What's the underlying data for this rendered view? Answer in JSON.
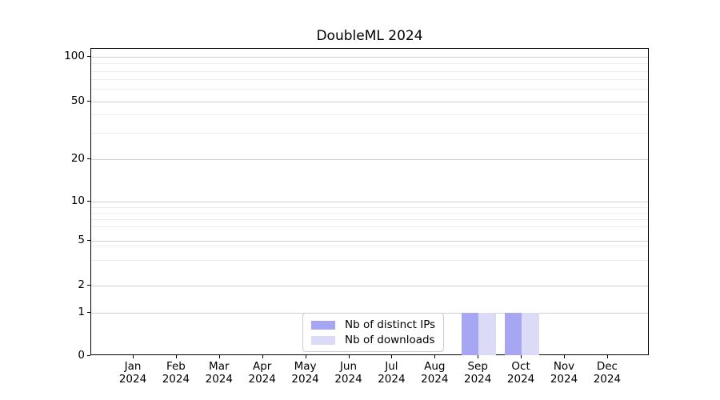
{
  "chart_data": {
    "type": "bar",
    "title": "DoubleML 2024",
    "xlabel": "",
    "ylabel": "",
    "x_tick_year": "2024",
    "categories": [
      "Jan",
      "Feb",
      "Mar",
      "Apr",
      "May",
      "Jun",
      "Jul",
      "Aug",
      "Sep",
      "Oct",
      "Nov",
      "Dec"
    ],
    "series": [
      {
        "name": "Nb of distinct IPs",
        "color": "#a6a6f2",
        "values": [
          0,
          0,
          0,
          0,
          0,
          0,
          0,
          0,
          1,
          1,
          0,
          0
        ]
      },
      {
        "name": "Nb of downloads",
        "color": "#dbdbf7",
        "values": [
          0,
          0,
          0,
          0,
          0,
          0,
          0,
          0,
          1,
          1,
          0,
          0
        ]
      }
    ],
    "y_axis": {
      "scale": "log-above-1-linear-below",
      "ylim": [
        0,
        110
      ],
      "ticks": [
        {
          "value": 100,
          "label": "100",
          "pos": 0.026
        },
        {
          "value": 50,
          "label": "50",
          "pos": 0.171
        },
        {
          "value": 20,
          "label": "20",
          "pos": 0.358
        },
        {
          "value": 10,
          "label": "10",
          "pos": 0.496
        },
        {
          "value": 5,
          "label": "5",
          "pos": 0.625
        },
        {
          "value": 2,
          "label": "2",
          "pos": 0.772
        },
        {
          "value": 1,
          "label": "1",
          "pos": 0.858
        },
        {
          "value": 0,
          "label": "0",
          "pos": 1.0
        }
      ],
      "minor_pos": [
        0.0477,
        0.0716,
        0.099,
        0.1302,
        0.2135,
        0.2724,
        0.5149,
        0.533,
        0.5539,
        0.5781,
        0.6406,
        0.6862
      ]
    },
    "grid": true,
    "legend": {
      "position": "bottom-center",
      "entries": [
        "Nb of distinct IPs",
        "Nb of downloads"
      ]
    }
  }
}
